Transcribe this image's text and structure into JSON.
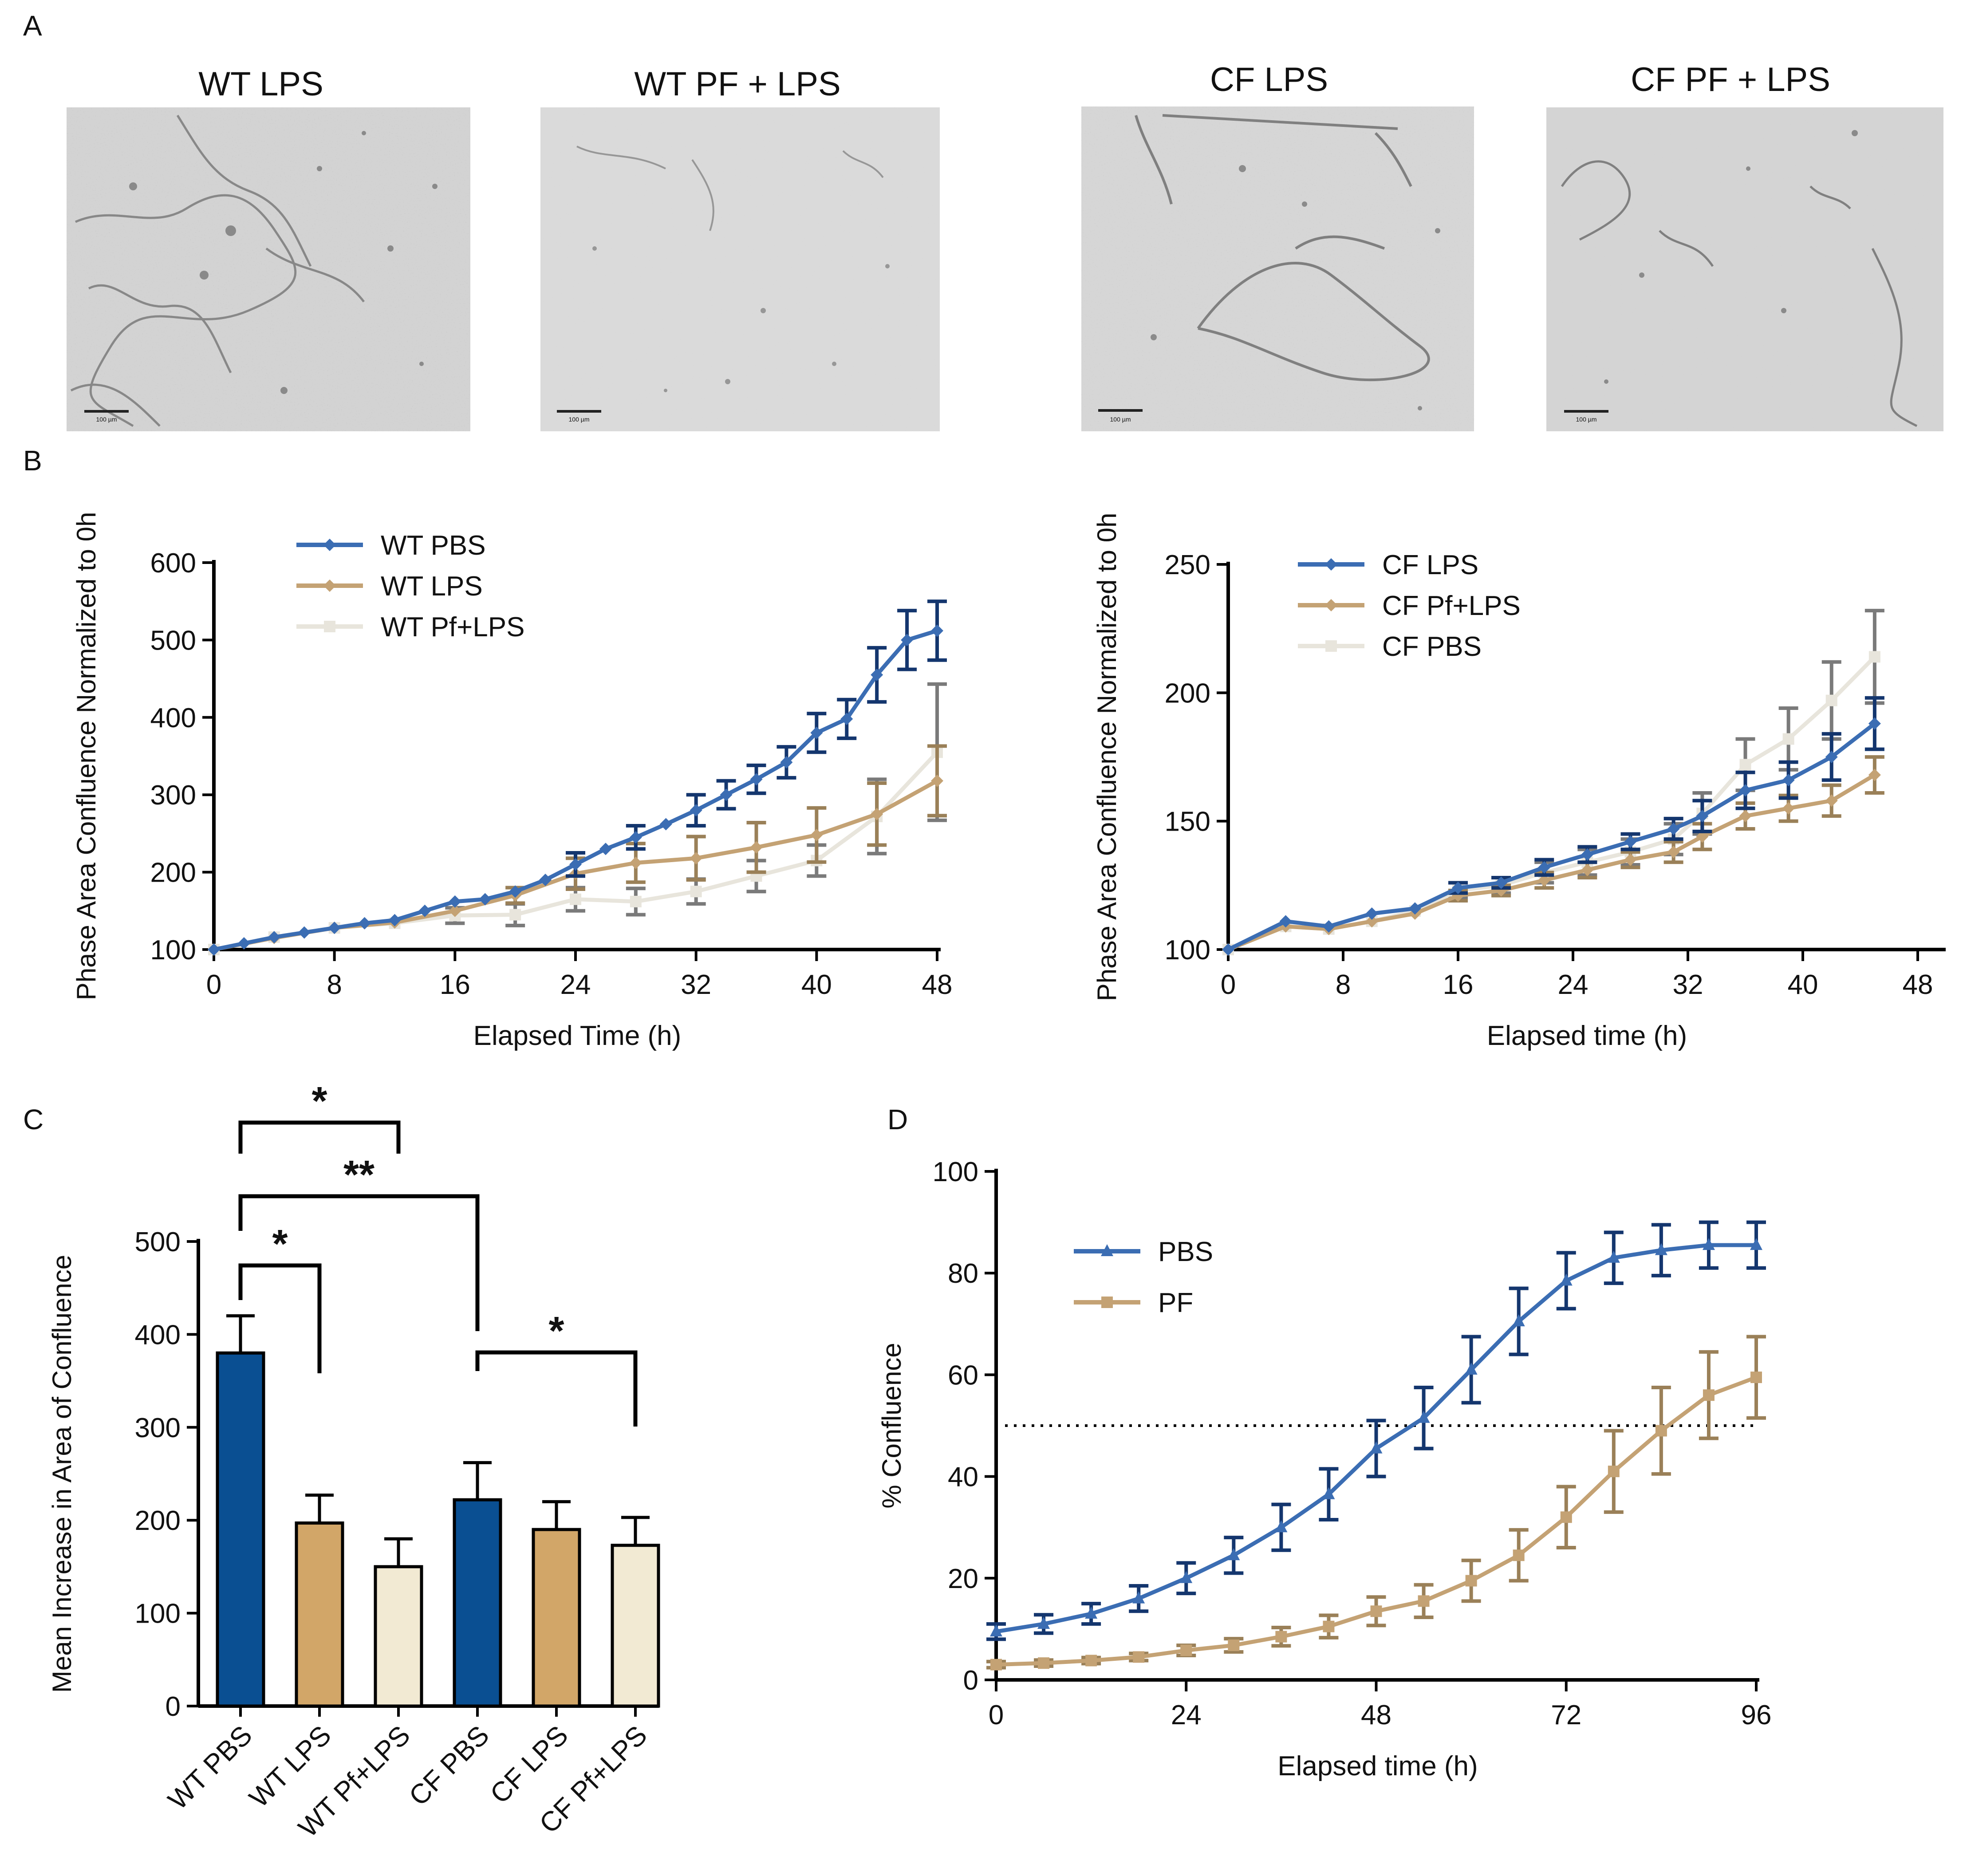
{
  "panel_letters": [
    "A",
    "B",
    "C",
    "D"
  ],
  "micrograph_titles": [
    "WT LPS",
    "WT PF + LPS",
    "CF LPS",
    "CF PF + LPS"
  ],
  "scale_bar_text": "100 µm",
  "colors": {
    "blue": "#3b6db3",
    "dark_blue": "#14366e",
    "tan": "#c4a274",
    "light": "#e8e5dc",
    "gray_err": "#7a7a7a",
    "bar_blue": "#0a4f92",
    "bar_tan": "#d2a668",
    "bar_cream": "#f2ead3"
  },
  "chart_data": [
    {
      "id": "B-left",
      "type": "line",
      "xlabel": "Elapsed Time (h)",
      "ylabel": "Phase Area  Confluence Normalized to 0h",
      "xlim": [
        0,
        48
      ],
      "ylim": [
        100,
        600
      ],
      "xticks": [
        0,
        8,
        16,
        24,
        32,
        40,
        48
      ],
      "yticks": [
        100,
        200,
        300,
        400,
        500,
        600
      ],
      "legend": "top-left",
      "series": [
        {
          "name": "WT PBS",
          "color": "#3b6db3",
          "err_color": "#14366e",
          "marker": "diamond",
          "x": [
            0,
            2,
            4,
            6,
            8,
            10,
            12,
            14,
            16,
            18,
            20,
            22,
            24,
            26,
            28,
            30,
            32,
            34,
            36,
            38,
            40,
            42,
            44,
            46,
            48
          ],
          "y": [
            100,
            108,
            116,
            122,
            128,
            134,
            138,
            150,
            162,
            165,
            175,
            190,
            210,
            230,
            245,
            262,
            280,
            300,
            320,
            342,
            380,
            398,
            455,
            500,
            512
          ],
          "err": [
            0,
            0,
            0,
            0,
            0,
            0,
            0,
            0,
            0,
            0,
            0,
            0,
            15,
            0,
            15,
            0,
            20,
            18,
            18,
            20,
            25,
            25,
            35,
            38,
            38
          ]
        },
        {
          "name": "WT LPS",
          "color": "#c4a274",
          "err_color": "#9a8058",
          "marker": "diamond",
          "x": [
            0,
            4,
            8,
            12,
            16,
            20,
            24,
            28,
            32,
            36,
            40,
            44,
            48
          ],
          "y": [
            100,
            115,
            128,
            135,
            150,
            170,
            198,
            212,
            218,
            232,
            248,
            275,
            318
          ],
          "err": [
            0,
            0,
            0,
            0,
            0,
            10,
            20,
            25,
            28,
            32,
            35,
            40,
            45
          ]
        },
        {
          "name": "WT Pf+LPS",
          "color": "#e8e5dc",
          "err_color": "#7a7a7a",
          "marker": "square",
          "x": [
            0,
            4,
            8,
            12,
            16,
            20,
            24,
            28,
            32,
            36,
            40,
            44,
            48
          ],
          "y": [
            100,
            116,
            128,
            134,
            144,
            145,
            165,
            162,
            175,
            195,
            215,
            272,
            355
          ],
          "err": [
            0,
            0,
            0,
            0,
            10,
            14,
            15,
            17,
            16,
            20,
            20,
            48,
            88
          ]
        }
      ]
    },
    {
      "id": "B-right",
      "type": "line",
      "xlabel": "Elapsed time (h)",
      "ylabel": "Phase  Area  Confluence Normalized to 0h",
      "xlim": [
        0,
        48
      ],
      "ylim": [
        100,
        250
      ],
      "xticks": [
        0,
        8,
        16,
        24,
        32,
        40,
        48
      ],
      "yticks": [
        100,
        150,
        200,
        250
      ],
      "legend": "top-left",
      "series": [
        {
          "name": "CF LPS",
          "color": "#3b6db3",
          "err_color": "#14366e",
          "marker": "diamond",
          "x": [
            0,
            4,
            7,
            10,
            13,
            16,
            19,
            22,
            25,
            28,
            31,
            33,
            36,
            39,
            42,
            45
          ],
          "y": [
            100,
            111,
            109,
            114,
            116,
            124,
            126,
            132,
            137,
            142,
            147,
            152,
            162,
            166,
            175,
            188
          ],
          "err": [
            0,
            0,
            0,
            0,
            0,
            2,
            2,
            3,
            3,
            3,
            4,
            6,
            7,
            7,
            9,
            10
          ]
        },
        {
          "name": "CF Pf+LPS",
          "color": "#c4a274",
          "err_color": "#9a8058",
          "marker": "diamond",
          "x": [
            0,
            4,
            7,
            10,
            13,
            16,
            19,
            22,
            25,
            28,
            31,
            33,
            36,
            39,
            42,
            45
          ],
          "y": [
            100,
            109,
            108,
            111,
            114,
            121,
            123,
            127,
            131,
            135,
            138,
            144,
            152,
            155,
            158,
            168
          ],
          "err": [
            0,
            0,
            0,
            0,
            0,
            2,
            2,
            3,
            3,
            3,
            4,
            5,
            5,
            5,
            6,
            7
          ]
        },
        {
          "name": "CF PBS",
          "color": "#e8e5dc",
          "err_color": "#7a7a7a",
          "marker": "square",
          "x": [
            0,
            4,
            7,
            10,
            13,
            16,
            19,
            22,
            25,
            28,
            31,
            33,
            36,
            39,
            42,
            45
          ],
          "y": [
            100,
            109,
            108,
            111,
            115,
            123,
            125,
            130,
            134,
            138,
            143,
            153,
            172,
            182,
            197,
            214
          ],
          "err": [
            0,
            0,
            0,
            0,
            0,
            3,
            3,
            4,
            5,
            5,
            6,
            8,
            10,
            12,
            15,
            18
          ]
        }
      ]
    },
    {
      "id": "C",
      "type": "bar",
      "ylabel": "Mean Increase in  Area of  Confluence",
      "ylim": [
        0,
        500
      ],
      "yticks": [
        0,
        100,
        200,
        300,
        400,
        500
      ],
      "categories": [
        "WT PBS",
        "WT LPS",
        "WT Pf+LPS",
        "CF PBS",
        "CF LPS",
        "CF Pf+LPS"
      ],
      "values": [
        380,
        197,
        150,
        222,
        190,
        173
      ],
      "errors": [
        40,
        30,
        30,
        40,
        30,
        30
      ],
      "bar_colors": [
        "#0a4f92",
        "#d2a668",
        "#f2ead3",
        "#0a4f92",
        "#d2a668",
        "#f2ead3"
      ],
      "significance": [
        {
          "from": 0,
          "to": 2,
          "label": "*"
        },
        {
          "from": 0,
          "to": 3,
          "label": "**"
        },
        {
          "from": 0,
          "to": 1,
          "label": "*"
        },
        {
          "from": 3,
          "to": 5,
          "label": "*"
        }
      ]
    },
    {
      "id": "D",
      "type": "line",
      "xlabel": "Elapsed time (h)",
      "ylabel": "% Confluence",
      "xlim": [
        0,
        96
      ],
      "ylim": [
        0,
        100
      ],
      "xticks": [
        0,
        24,
        48,
        72,
        96
      ],
      "yticks": [
        0,
        20,
        40,
        60,
        80,
        100
      ],
      "reference_line_y": 50,
      "legend": "top-left",
      "series": [
        {
          "name": "PBS",
          "color": "#3b6db3",
          "err_color": "#14366e",
          "marker": "triangle",
          "x": [
            0,
            6,
            12,
            18,
            24,
            30,
            36,
            42,
            48,
            54,
            60,
            66,
            72,
            78,
            84,
            90,
            96
          ],
          "y": [
            9.5,
            11,
            13,
            16,
            20,
            24.5,
            30,
            36.5,
            45.5,
            51.5,
            61,
            70.5,
            78.5,
            83,
            84.5,
            85.5,
            85.5
          ],
          "err": [
            1.5,
            1.8,
            2,
            2.5,
            3,
            3.5,
            4.5,
            5,
            5.5,
            6,
            6.5,
            6.5,
            5.5,
            5,
            5,
            4.5,
            4.5
          ]
        },
        {
          "name": "PF",
          "color": "#c4a274",
          "err_color": "#9a8058",
          "marker": "square",
          "x": [
            0,
            6,
            12,
            18,
            24,
            30,
            36,
            42,
            48,
            54,
            60,
            66,
            72,
            78,
            84,
            90,
            96
          ],
          "y": [
            3,
            3.3,
            3.8,
            4.5,
            5.8,
            6.8,
            8.5,
            10.5,
            13.5,
            15.5,
            19.5,
            24.5,
            32,
            41,
            49,
            56,
            59.5
          ],
          "err": [
            0.6,
            0.6,
            0.6,
            0.7,
            1,
            1.3,
            1.8,
            2.2,
            2.8,
            3.2,
            4,
            5,
            6,
            8,
            8.5,
            8.5,
            8
          ]
        }
      ]
    }
  ]
}
